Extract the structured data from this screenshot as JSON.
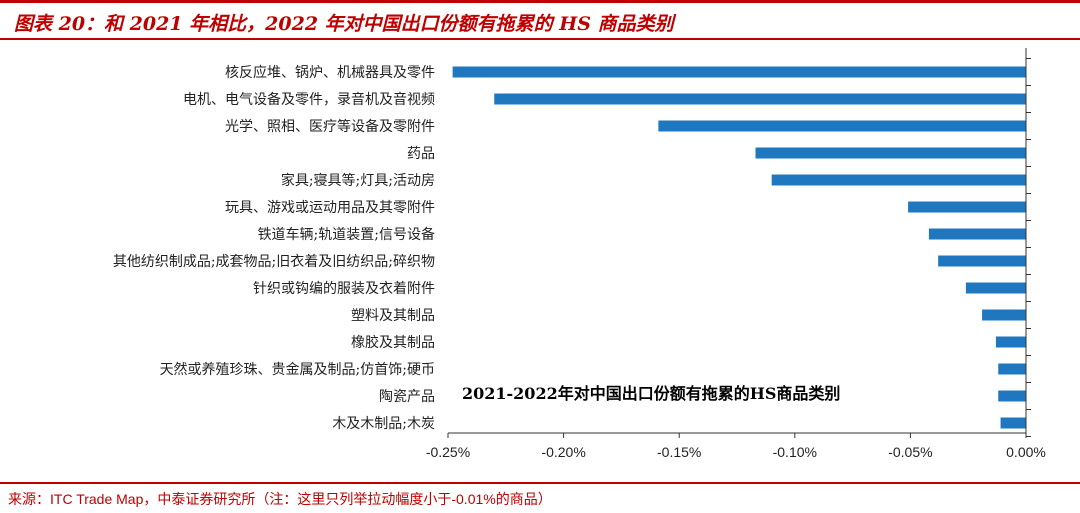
{
  "header": {
    "title": "图表 20：和 2021 年相比，2022 年对中国出口份额有拖累的 HS 商品类别"
  },
  "footer": {
    "source": "来源：ITC Trade Map，中泰证券研究所（注：这里只列举拉动幅度小于-0.01%的商品）"
  },
  "colors": {
    "bar": "#1f77c0",
    "accent": "#c00000"
  },
  "chart_data": {
    "type": "bar",
    "orientation": "horizontal",
    "annotation": "2021-2022年对中国出口份额有拖累的HS商品类别",
    "categories": [
      "核反应堆、锅炉、机械器具及零件",
      "电机、电气设备及零件，录音机及音视频",
      "光学、照相、医疗等设备及零附件",
      "药品",
      "家具;寝具等;灯具;活动房",
      "玩具、游戏或运动用品及其零附件",
      "铁道车辆;轨道装置;信号设备",
      "其他纺织制成品;成套物品;旧衣着及旧纺织品;碎织物",
      "针织或钩编的服装及衣着附件",
      "塑料及其制品",
      "橡胶及其制品",
      "天然或养殖珍珠、贵金属及制品;仿首饰;硬币",
      "陶瓷产品",
      "木及木制品;木炭"
    ],
    "values": [
      -0.248,
      -0.23,
      -0.159,
      -0.117,
      -0.11,
      -0.051,
      -0.042,
      -0.038,
      -0.026,
      -0.019,
      -0.013,
      -0.012,
      -0.012,
      -0.011
    ],
    "xlim": [
      -0.25,
      0.0
    ],
    "xticks": [
      -0.25,
      -0.2,
      -0.15,
      -0.1,
      -0.05,
      0.0
    ],
    "xtick_labels": [
      "-0.25%",
      "-0.20%",
      "-0.15%",
      "-0.10%",
      "-0.05%",
      "0.00%"
    ],
    "grid": false
  }
}
